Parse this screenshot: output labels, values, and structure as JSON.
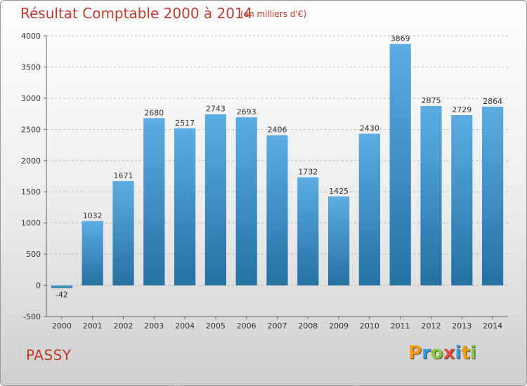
{
  "header": {
    "title": "Résultat Comptable 2000 à 2014",
    "subtitle": "(en milliers d'€)"
  },
  "footer": {
    "commune": "PASSY",
    "logo_text": "Proxiti",
    "logo_letters": [
      {
        "ch": "P",
        "color": "#f39c12"
      },
      {
        "ch": "r",
        "color": "#3498db"
      },
      {
        "ch": "o",
        "color": "#8dc63f"
      },
      {
        "ch": "x",
        "color": "#e74c3c"
      },
      {
        "ch": "i",
        "color": "#3498db"
      },
      {
        "ch": "t",
        "color": "#f39c12"
      },
      {
        "ch": "i",
        "color": "#8dc63f"
      }
    ]
  },
  "chart_data": {
    "type": "bar",
    "title": "Résultat Comptable 2000 à 2014",
    "subtitle": "(en milliers d'€)",
    "xlabel": "",
    "ylabel": "",
    "categories": [
      "2000",
      "2001",
      "2002",
      "2003",
      "2004",
      "2005",
      "2006",
      "2007",
      "2008",
      "2009",
      "2010",
      "2011",
      "2012",
      "2013",
      "2014"
    ],
    "values": [
      -42,
      1032,
      1671,
      2680,
      2517,
      2743,
      2693,
      2406,
      1732,
      1425,
      2430,
      3869,
      2875,
      2729,
      2864
    ],
    "ylim": [
      -500,
      4000
    ],
    "yticks": [
      -500,
      0,
      500,
      1000,
      1500,
      2000,
      2500,
      3000,
      3500,
      4000
    ],
    "grid": "horizontal-dashed",
    "colors": {
      "bar_top": "#5dade2",
      "bar_bottom": "#2471a3",
      "title": "#c0392b"
    }
  }
}
